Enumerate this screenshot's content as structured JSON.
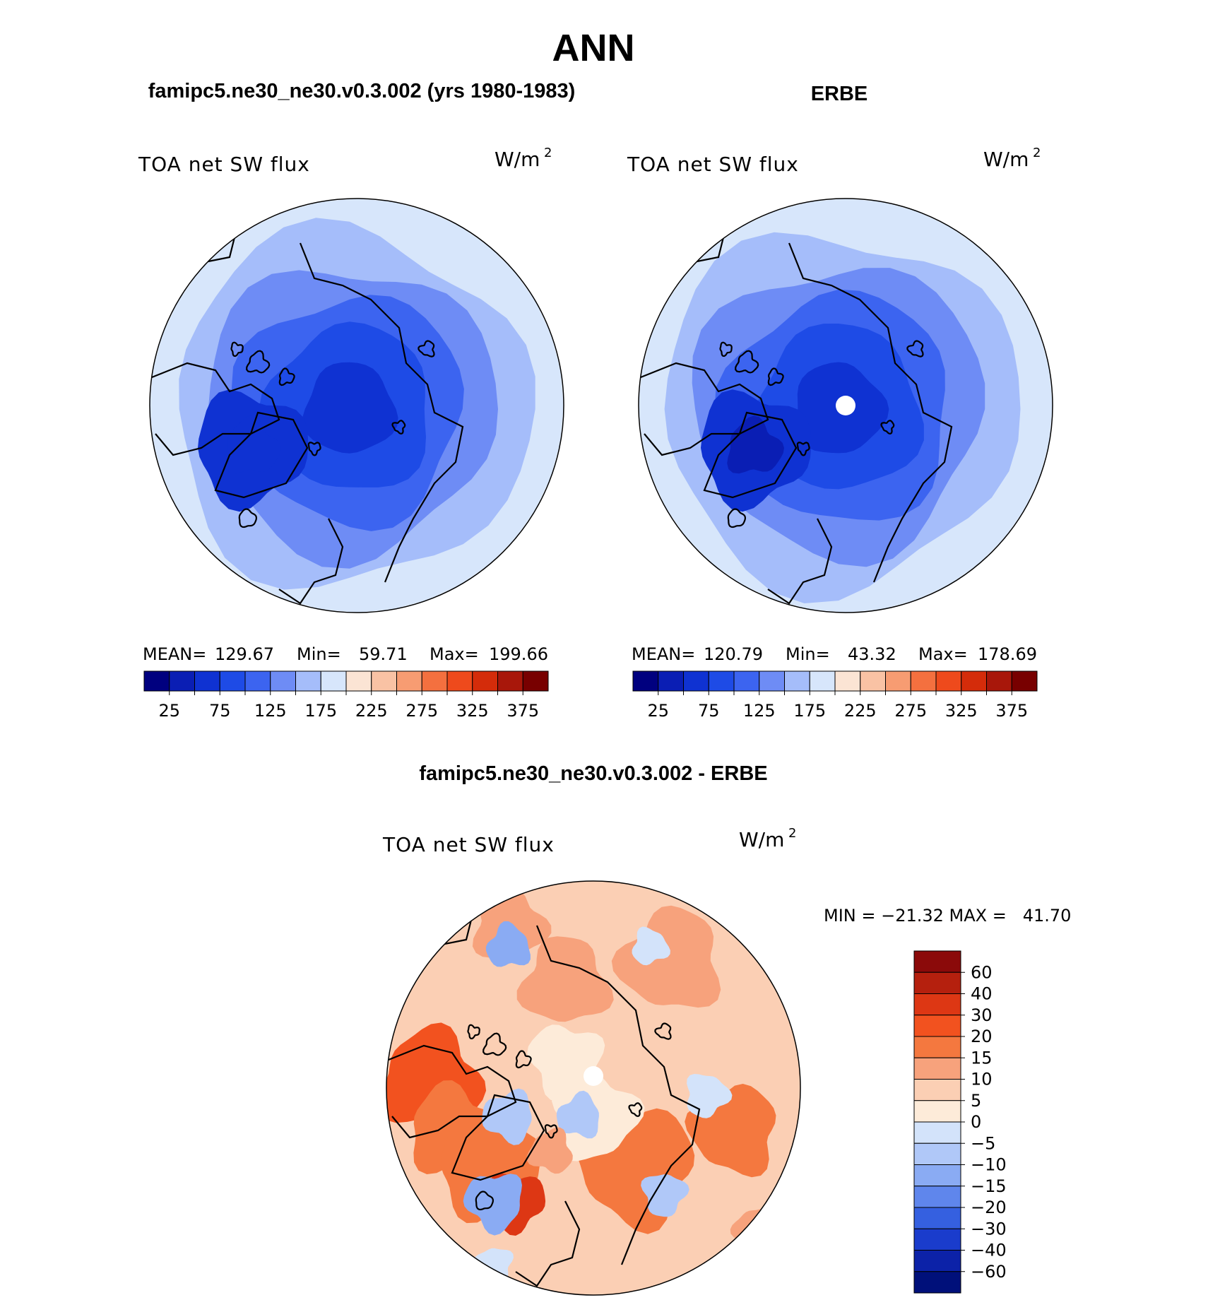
{
  "main_title": "ANN",
  "panels": [
    {
      "title": "famipc5.ne30_ne30.v0.3.002 (yrs 1980-1983)",
      "variable": "TOA net SW flux",
      "units": "W/m",
      "units_sup": "2",
      "stats": {
        "mean_label": "MEAN=",
        "mean": "129.67",
        "min_label": "Min=",
        "min": "59.71",
        "max_label": "Max=",
        "max": "199.66"
      }
    },
    {
      "title": "ERBE",
      "variable": "TOA net SW flux",
      "units": "W/m",
      "units_sup": "2",
      "stats": {
        "mean_label": "MEAN=",
        "mean": "120.79",
        "min_label": "Min=",
        "min": "43.32",
        "max_label": "Max=",
        "max": "178.69"
      }
    }
  ],
  "diff_panel": {
    "title": "famipc5.ne30_ne30.v0.3.002 - ERBE",
    "variable": "TOA net SW flux",
    "units": "W/m",
    "units_sup": "2",
    "minmax": "MIN = −21.32 MAX =   41.70"
  },
  "chart_data": [
    {
      "type": "heatmap",
      "projection": "north-polar-stereographic",
      "title": "famipc5.ne30_ne30.v0.3.002 (yrs 1980-1983)",
      "field": "TOA net SW flux",
      "units": "W/m2",
      "mean": 129.67,
      "min": 59.71,
      "max": 199.66,
      "colorbar": {
        "orientation": "horizontal",
        "levels": [
          25,
          50,
          75,
          100,
          125,
          150,
          175,
          200,
          225,
          250,
          275,
          300,
          325,
          350,
          375
        ],
        "tick_labels": [
          "25",
          "75",
          "125",
          "175",
          "225",
          "275",
          "325",
          "375"
        ],
        "colors": [
          "#00007f",
          "#0a1eb4",
          "#0f32d2",
          "#1e4be6",
          "#3c64f0",
          "#6e8cf5",
          "#a5bdfa",
          "#d7e6fb",
          "#fbe4d4",
          "#f9c2a4",
          "#f79c72",
          "#f4703f",
          "#ee4a1c",
          "#d42c0a",
          "#a8170a",
          "#780000"
        ]
      }
    },
    {
      "type": "heatmap",
      "projection": "north-polar-stereographic",
      "title": "ERBE",
      "field": "TOA net SW flux",
      "units": "W/m2",
      "mean": 120.79,
      "min": 43.32,
      "max": 178.69,
      "colorbar": {
        "orientation": "horizontal",
        "levels": [
          25,
          50,
          75,
          100,
          125,
          150,
          175,
          200,
          225,
          250,
          275,
          300,
          325,
          350,
          375
        ],
        "tick_labels": [
          "25",
          "75",
          "125",
          "175",
          "225",
          "275",
          "325",
          "375"
        ],
        "colors": [
          "#00007f",
          "#0a1eb4",
          "#0f32d2",
          "#1e4be6",
          "#3c64f0",
          "#6e8cf5",
          "#a5bdfa",
          "#d7e6fb",
          "#fbe4d4",
          "#f9c2a4",
          "#f79c72",
          "#f4703f",
          "#ee4a1c",
          "#d42c0a",
          "#a8170a",
          "#780000"
        ]
      }
    },
    {
      "type": "heatmap",
      "projection": "north-polar-stereographic",
      "title": "famipc5.ne30_ne30.v0.3.002 - ERBE",
      "field": "TOA net SW flux",
      "units": "W/m2",
      "min": -21.32,
      "max": 41.7,
      "colorbar": {
        "orientation": "vertical",
        "levels": [
          60,
          40,
          30,
          20,
          15,
          10,
          5,
          0,
          -5,
          -10,
          -15,
          -20,
          -30,
          -40,
          -60
        ],
        "tick_labels": [
          "60",
          "40",
          "30",
          "20",
          "15",
          "10",
          "5",
          "0",
          "−5",
          "−10",
          "−15",
          "−20",
          "−30",
          "−40",
          "−60"
        ],
        "colors": [
          "#8b0a0a",
          "#b5200e",
          "#dd3714",
          "#f2521f",
          "#f4783f",
          "#f7a27c",
          "#fbcfb4",
          "#fdebd9",
          "#d3e3fa",
          "#b0c8f8",
          "#8aabf3",
          "#5f86ec",
          "#3560e0",
          "#1a3ccc",
          "#0c22a8",
          "#00107a"
        ]
      }
    }
  ]
}
